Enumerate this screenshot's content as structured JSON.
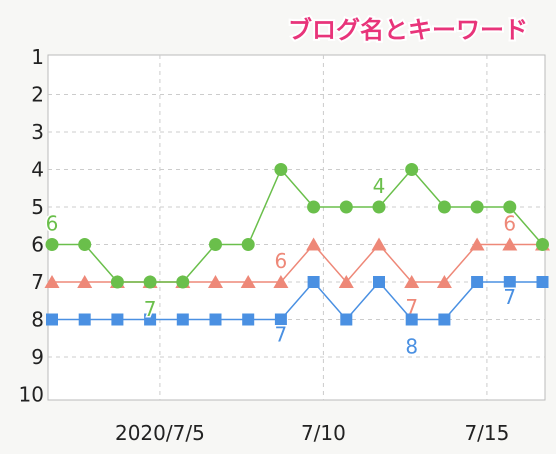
{
  "chart_data": {
    "type": "line",
    "title": "ブログ名とキーワード",
    "y_axis": {
      "ticks": [
        "1",
        "2",
        "3",
        "4",
        "5",
        "6",
        "7",
        "8",
        "9",
        "10"
      ],
      "range": [
        1,
        10
      ],
      "inverted": true
    },
    "x_axis": {
      "tick_labels": [
        "2020/7/5",
        "7/10",
        "7/15"
      ]
    },
    "grid": true,
    "x": [
      1,
      2,
      3,
      4,
      5,
      6,
      7,
      8,
      9,
      10,
      11,
      12,
      13,
      14,
      15,
      16,
      17,
      18,
      19
    ],
    "series": [
      {
        "color": "#6abf4b",
        "marker": "circle",
        "values": [
          6,
          6,
          7,
          7,
          7,
          6,
          6,
          4,
          5,
          5,
          5,
          4,
          5,
          5,
          5,
          6
        ],
        "x": [
          1,
          2,
          3,
          4,
          5,
          6,
          7,
          8,
          9,
          10,
          11,
          12,
          13,
          14,
          15,
          16
        ],
        "labels": [
          {
            "i": 1,
            "text": "6"
          },
          {
            "i": 4,
            "text": "7"
          },
          {
            "i": 11,
            "text": "4"
          }
        ]
      },
      {
        "color": "#ee8878",
        "marker": "triangle",
        "values": [
          7,
          7,
          7,
          7,
          7,
          7,
          7,
          7,
          6,
          7,
          6,
          7,
          7,
          6,
          6,
          6
        ],
        "x": [
          1,
          2,
          3,
          4,
          5,
          6,
          7,
          8,
          9,
          10,
          11,
          12,
          13,
          14,
          15,
          16
        ],
        "labels": [
          {
            "i": 8,
            "text": "6"
          },
          {
            "i": 12,
            "text": "7"
          },
          {
            "i": 15,
            "text": "6"
          }
        ]
      },
      {
        "color": "#4a90e2",
        "marker": "square",
        "values": [
          8,
          8,
          8,
          8,
          8,
          8,
          8,
          8,
          7,
          8,
          7,
          8,
          8,
          7,
          7,
          7
        ],
        "x": [
          1,
          2,
          3,
          4,
          5,
          6,
          7,
          8,
          9,
          10,
          11,
          12,
          13,
          14,
          15,
          16
        ],
        "labels": [
          {
            "i": 8,
            "text": "7"
          },
          {
            "i": 12,
            "text": "8"
          },
          {
            "i": 15,
            "text": "7"
          }
        ]
      }
    ]
  }
}
